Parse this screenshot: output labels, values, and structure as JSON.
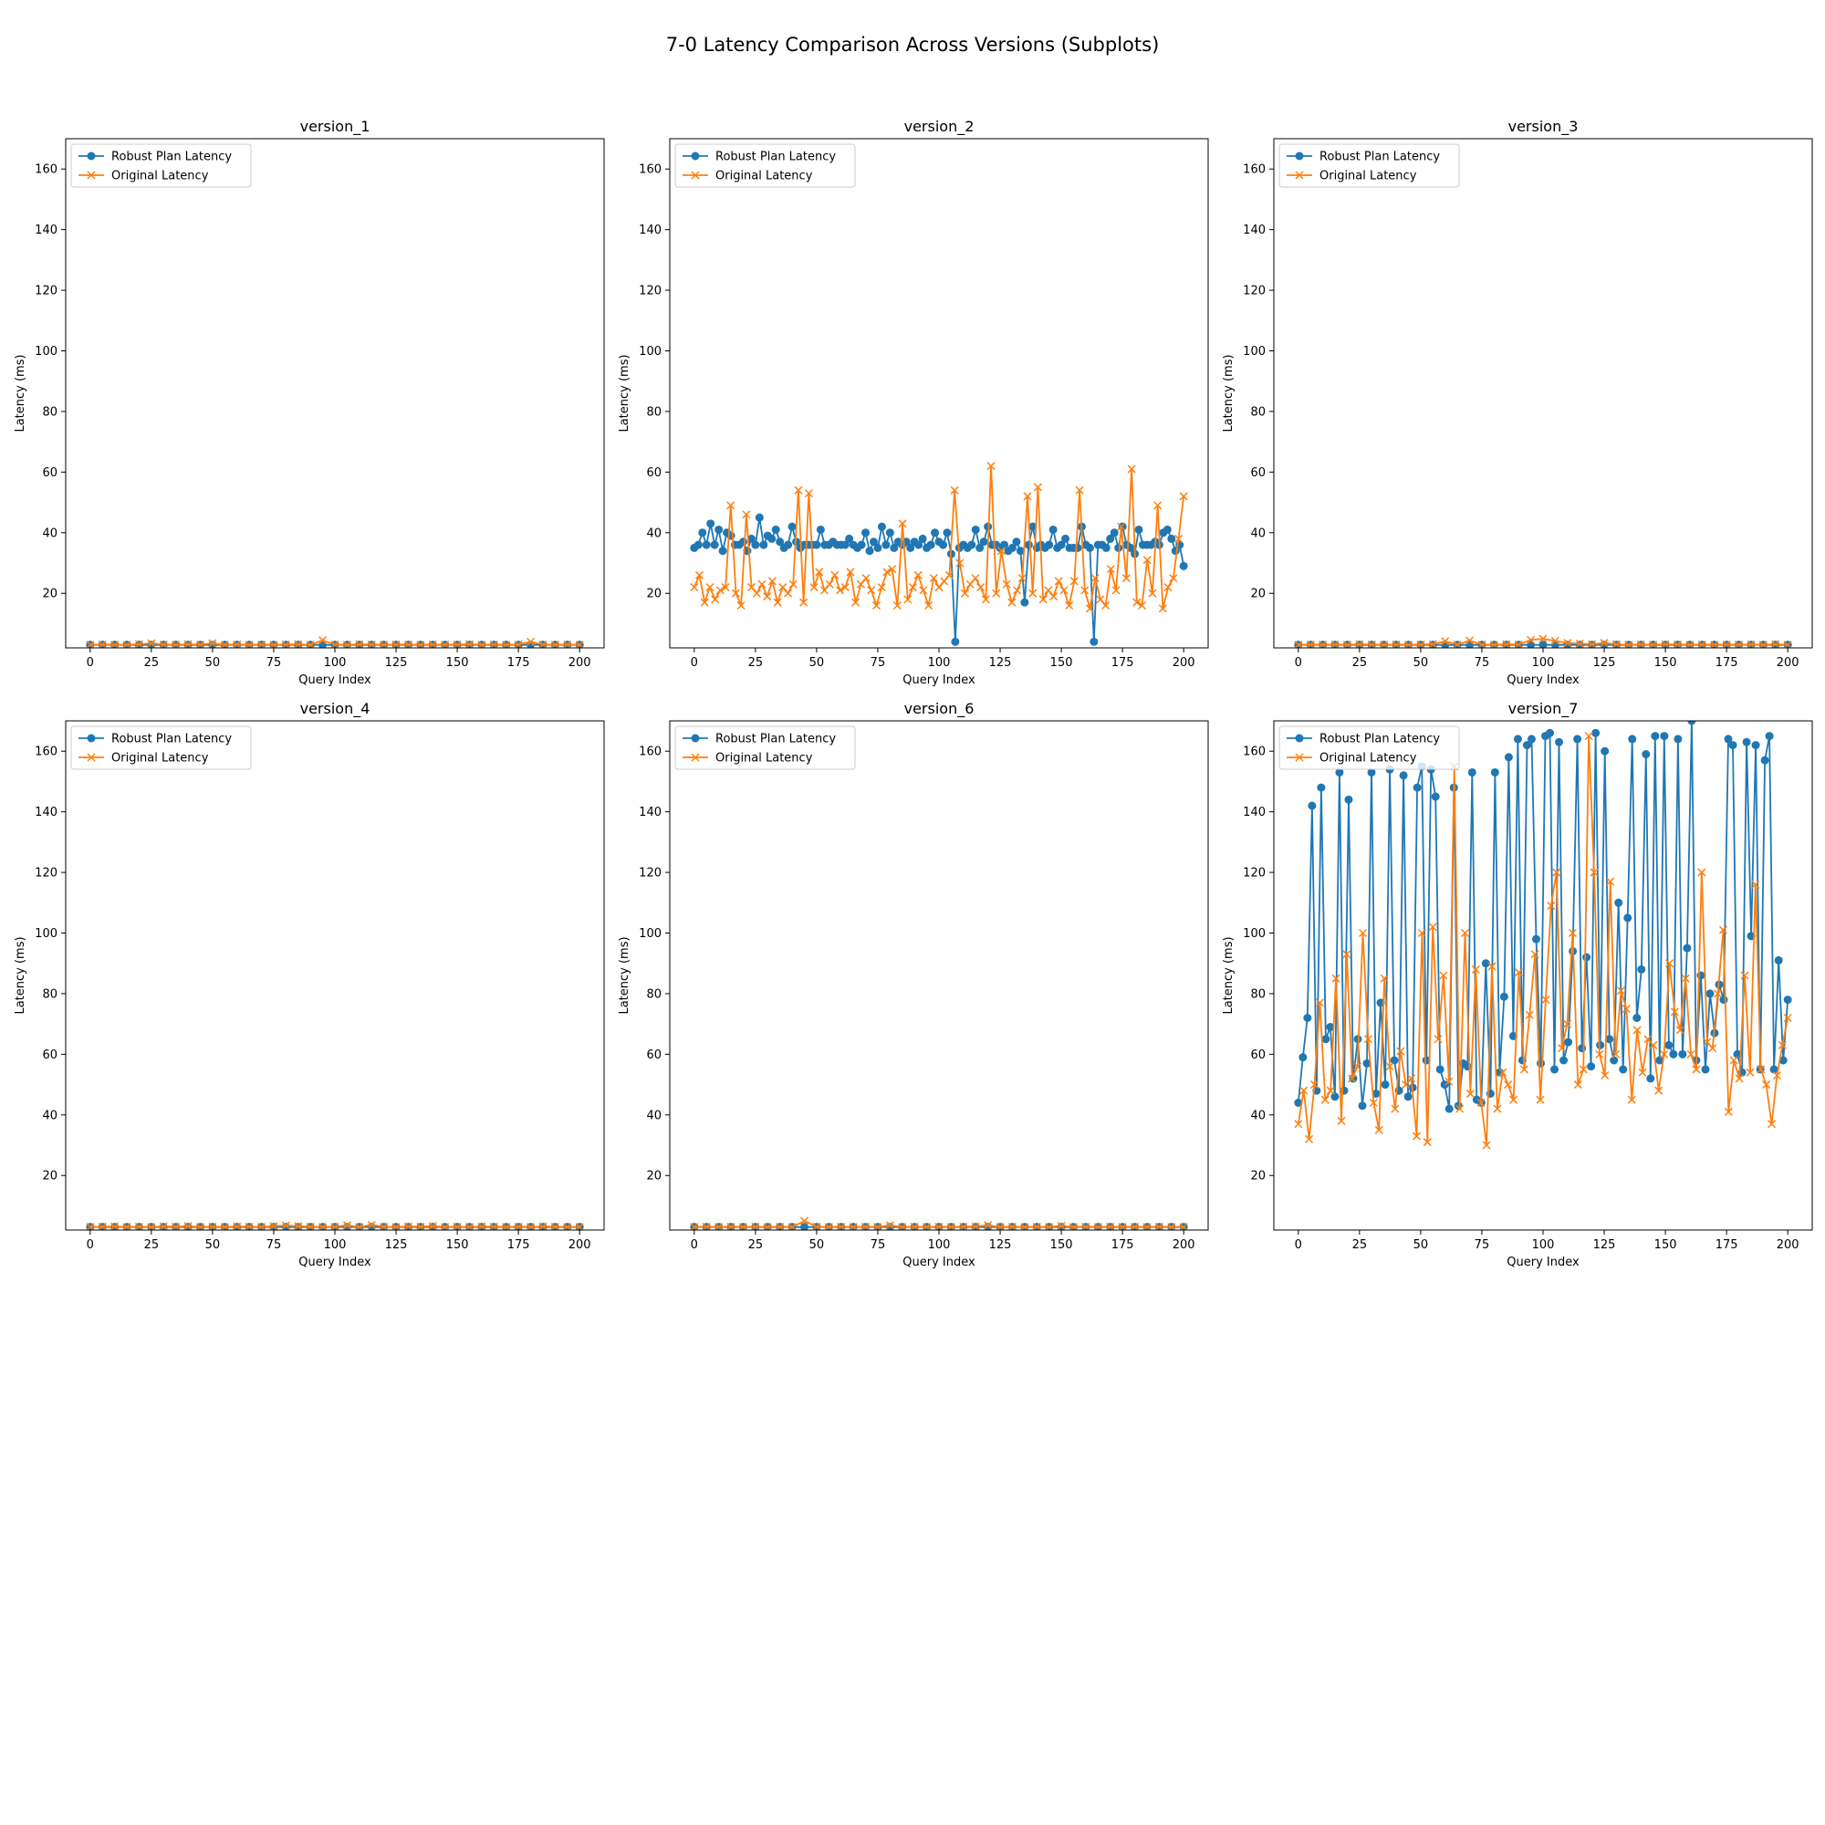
{
  "figure": {
    "title": "7-0 Latency Comparison Across Versions (Subplots)"
  },
  "chart_data": [
    {
      "type": "line",
      "title": "version_1",
      "xlabel": "Query Index",
      "ylabel": "Latency (ms)",
      "xlim": [
        -10,
        210
      ],
      "ylim": [
        2,
        170
      ],
      "xticks": [
        0,
        25,
        50,
        75,
        100,
        125,
        150,
        175,
        200
      ],
      "yticks": [
        20,
        40,
        60,
        80,
        100,
        120,
        140,
        160
      ],
      "legend": "upper-left",
      "series": [
        {
          "name": "Robust Plan Latency",
          "color": "#1f77b4",
          "marker": "circle",
          "values": [
            3.0,
            3.0,
            3.0,
            3.0,
            3.0,
            3.0,
            3.0,
            3.0,
            3.0,
            3.0,
            3.0,
            3.0,
            3.0,
            3.0,
            3.0,
            3.0,
            3.0,
            3.0,
            3.0,
            3.0,
            3.0,
            3.0,
            3.0,
            3.0,
            3.0,
            3.0,
            3.0,
            3.0,
            3.0,
            3.0,
            3.0,
            3.0,
            3.0,
            3.0,
            3.0,
            3.0,
            3.0,
            3.0,
            3.0,
            3.0,
            3.0
          ]
        },
        {
          "name": "Original Latency",
          "color": "#ff7f0e",
          "marker": "x",
          "values": [
            3.0,
            3.1,
            3.0,
            3.0,
            3.2,
            3.5,
            3.1,
            3.0,
            3.2,
            3.1,
            3.5,
            3.0,
            3.1,
            3.0,
            3.1,
            3.0,
            3.1,
            3.2,
            3.0,
            4.5,
            3.1,
            3.0,
            3.2,
            3.1,
            3.0,
            3.1,
            3.1,
            3.0,
            3.1,
            3.0,
            3.1,
            3.2,
            3.0,
            3.1,
            3.0,
            3.1,
            4.0,
            3.1,
            3.0,
            3.1,
            3.0
          ]
        }
      ]
    },
    {
      "type": "line",
      "title": "version_2",
      "xlabel": "Query Index",
      "ylabel": "Latency (ms)",
      "xlim": [
        -10,
        210
      ],
      "ylim": [
        2,
        170
      ],
      "xticks": [
        0,
        25,
        50,
        75,
        100,
        125,
        150,
        175,
        200
      ],
      "yticks": [
        20,
        40,
        60,
        80,
        100,
        120,
        140,
        160
      ],
      "legend": "upper-left",
      "series": [
        {
          "name": "Robust Plan Latency",
          "color": "#1f77b4",
          "marker": "circle",
          "values": [
            35,
            36,
            40,
            36,
            43,
            36,
            41,
            34,
            40,
            39,
            36,
            36,
            37,
            34,
            38,
            36,
            45,
            36,
            39,
            38,
            41,
            37,
            35,
            36,
            42,
            37,
            35,
            36,
            36,
            36,
            36,
            41,
            36,
            36,
            37,
            36,
            36,
            36,
            38,
            36,
            35,
            36,
            40,
            34,
            37,
            35,
            42,
            36,
            40,
            35,
            37,
            36,
            37,
            35,
            37,
            36,
            38,
            35,
            36,
            40,
            37,
            36,
            40,
            33,
            4,
            35,
            36,
            35,
            36,
            41,
            35,
            37,
            42,
            36,
            36,
            35,
            36,
            34,
            35,
            37,
            34,
            17,
            36,
            42,
            35,
            36,
            35,
            36,
            41,
            35,
            36,
            38,
            35,
            35,
            35,
            42,
            36,
            35,
            4,
            36,
            36,
            35,
            38,
            40,
            35,
            42,
            36,
            35,
            33,
            41,
            36,
            36,
            36,
            37,
            36,
            40,
            41,
            38,
            34,
            36,
            29
          ]
        },
        {
          "name": "Original Latency",
          "color": "#ff7f0e",
          "marker": "x",
          "values": [
            22,
            26,
            17,
            22,
            18,
            21,
            22,
            49,
            20,
            16,
            46,
            22,
            20,
            23,
            19,
            24,
            17,
            22,
            20,
            23,
            54,
            17,
            53,
            22,
            27,
            21,
            23,
            26,
            21,
            22,
            27,
            17,
            23,
            25,
            21,
            16,
            22,
            27,
            28,
            16,
            43,
            18,
            22,
            26,
            21,
            16,
            25,
            22,
            24,
            26,
            54,
            30,
            20,
            23,
            25,
            22,
            18,
            62,
            20,
            34,
            23,
            17,
            21,
            25,
            52,
            20,
            55,
            18,
            21,
            19,
            24,
            21,
            16,
            24,
            54,
            21,
            15,
            25,
            18,
            16,
            28,
            21,
            42,
            25,
            61,
            17,
            16,
            31,
            20,
            49,
            15,
            22,
            25,
            38,
            52
          ]
        }
      ]
    },
    {
      "type": "line",
      "title": "version_3",
      "xlabel": "Query Index",
      "ylabel": "Latency (ms)",
      "xlim": [
        -10,
        210
      ],
      "ylim": [
        2,
        170
      ],
      "xticks": [
        0,
        25,
        50,
        75,
        100,
        125,
        150,
        175,
        200
      ],
      "yticks": [
        20,
        40,
        60,
        80,
        100,
        120,
        140,
        160
      ],
      "legend": "upper-left",
      "series": [
        {
          "name": "Robust Plan Latency",
          "color": "#1f77b4",
          "marker": "circle",
          "values": [
            3.0,
            3.0,
            3.0,
            3.0,
            3.0,
            3.0,
            3.0,
            3.0,
            3.0,
            3.0,
            3.0,
            3.0,
            3.0,
            3.0,
            3.0,
            3.0,
            3.0,
            3.0,
            3.0,
            3.0,
            3.0,
            3.0,
            3.0,
            3.0,
            3.0,
            3.0,
            3.0,
            3.0,
            3.0,
            3.0,
            3.0,
            3.0,
            3.0,
            3.0,
            3.0,
            3.0,
            3.0,
            3.0,
            3.0,
            3.0,
            3.0
          ]
        },
        {
          "name": "Original Latency",
          "color": "#ff7f0e",
          "marker": "x",
          "values": [
            3.0,
            3.1,
            3.0,
            3.1,
            3.0,
            3.2,
            3.1,
            3.0,
            3.1,
            3.0,
            3.1,
            3.2,
            4.2,
            3.1,
            4.4,
            3.1,
            3.0,
            3.2,
            3.1,
            4.6,
            5.0,
            4.3,
            3.6,
            3.4,
            3.2,
            3.6,
            3.2,
            3.0,
            3.1,
            3.0,
            3.2,
            3.1,
            3.0,
            3.1,
            3.0,
            3.1,
            3.0,
            3.1,
            3.0,
            3.2,
            3.0
          ]
        }
      ]
    },
    {
      "type": "line",
      "title": "version_4",
      "xlabel": "Query Index",
      "ylabel": "Latency (ms)",
      "xlim": [
        -10,
        210
      ],
      "ylim": [
        2,
        170
      ],
      "xticks": [
        0,
        25,
        50,
        75,
        100,
        125,
        150,
        175,
        200
      ],
      "yticks": [
        20,
        40,
        60,
        80,
        100,
        120,
        140,
        160
      ],
      "legend": "upper-left",
      "series": [
        {
          "name": "Robust Plan Latency",
          "color": "#1f77b4",
          "marker": "circle",
          "values": [
            3.0,
            3.0,
            3.0,
            3.0,
            3.0,
            3.0,
            3.0,
            3.0,
            3.0,
            3.0,
            3.0,
            3.0,
            3.0,
            3.0,
            3.0,
            3.0,
            3.0,
            3.0,
            3.0,
            3.0,
            3.0,
            3.0,
            3.0,
            3.0,
            3.0,
            3.0,
            3.0,
            3.0,
            3.0,
            3.0,
            3.0,
            3.0,
            3.0,
            3.0,
            3.0,
            3.0,
            3.0,
            3.0,
            3.0,
            3.0,
            3.0
          ]
        },
        {
          "name": "Original Latency",
          "color": "#ff7f0e",
          "marker": "x",
          "values": [
            3.0,
            3.1,
            3.2,
            3.0,
            3.1,
            3.0,
            3.2,
            3.1,
            3.3,
            3.0,
            3.1,
            3.0,
            3.2,
            3.1,
            3.0,
            3.3,
            3.5,
            3.3,
            3.1,
            3.0,
            3.1,
            3.6,
            3.0,
            3.7,
            3.1,
            3.0,
            3.2,
            3.1,
            3.3,
            3.0,
            3.1,
            3.0,
            3.2,
            3.1,
            3.0,
            3.1,
            3.0,
            3.2,
            3.1,
            3.0,
            3.0
          ]
        }
      ]
    },
    {
      "type": "line",
      "title": "version_6",
      "xlabel": "Query Index",
      "ylabel": "Latency (ms)",
      "xlim": [
        -10,
        210
      ],
      "ylim": [
        2,
        170
      ],
      "xticks": [
        0,
        25,
        50,
        75,
        100,
        125,
        150,
        175,
        200
      ],
      "yticks": [
        20,
        40,
        60,
        80,
        100,
        120,
        140,
        160
      ],
      "legend": "upper-left",
      "series": [
        {
          "name": "Robust Plan Latency",
          "color": "#1f77b4",
          "marker": "circle",
          "values": [
            3.0,
            3.0,
            3.0,
            3.0,
            3.0,
            3.0,
            3.0,
            3.0,
            3.0,
            3.0,
            3.0,
            3.0,
            3.0,
            3.0,
            3.0,
            3.0,
            3.0,
            3.0,
            3.0,
            3.0,
            3.0,
            3.0,
            3.0,
            3.0,
            3.0,
            3.0,
            3.0,
            3.0,
            3.0,
            3.0,
            3.0,
            3.0,
            3.0,
            3.0,
            3.0,
            3.0,
            3.0,
            3.0,
            3.0,
            3.0,
            3.0
          ]
        },
        {
          "name": "Original Latency",
          "color": "#ff7f0e",
          "marker": "x",
          "values": [
            3.0,
            3.1,
            3.0,
            3.1,
            3.0,
            3.1,
            3.0,
            3.1,
            3.0,
            5.0,
            3.1,
            3.0,
            3.1,
            3.0,
            3.1,
            3.0,
            3.6,
            3.0,
            3.1,
            3.0,
            3.1,
            3.0,
            3.1,
            3.2,
            3.6,
            3.0,
            3.1,
            3.0,
            3.1,
            3.0,
            3.4,
            3.0,
            3.1,
            3.0,
            3.1,
            3.0,
            3.1,
            3.0,
            3.1,
            3.0,
            3.0
          ]
        }
      ]
    },
    {
      "type": "line",
      "title": "version_7",
      "xlabel": "Query Index",
      "ylabel": "Latency (ms)",
      "xlim": [
        -10,
        210
      ],
      "ylim": [
        2,
        170
      ],
      "xticks": [
        0,
        25,
        50,
        75,
        100,
        125,
        150,
        175,
        200
      ],
      "yticks": [
        20,
        40,
        60,
        80,
        100,
        120,
        140,
        160
      ],
      "legend": "upper-left",
      "series": [
        {
          "name": "Robust Plan Latency",
          "color": "#1f77b4",
          "marker": "circle",
          "values": [
            44,
            59,
            72,
            142,
            48,
            148,
            65,
            69,
            46,
            153,
            48,
            144,
            52,
            65,
            43,
            57,
            153,
            47,
            77,
            50,
            154,
            58,
            48,
            152,
            46,
            49,
            148,
            155,
            58,
            154,
            145,
            55,
            50,
            42,
            148,
            43,
            57,
            56,
            153,
            45,
            44,
            90,
            47,
            153,
            54,
            79,
            158,
            66,
            164,
            58,
            162,
            164,
            98,
            57,
            165,
            166,
            55,
            163,
            58,
            64,
            94,
            164,
            62,
            92,
            56,
            166,
            63,
            160,
            65,
            58,
            110,
            55,
            105,
            164,
            72,
            88,
            159,
            52,
            165,
            58,
            165,
            63,
            60,
            164,
            60,
            95,
            170,
            58,
            86,
            55,
            80,
            67,
            83,
            78,
            164,
            162,
            60,
            54,
            163,
            99,
            162,
            55,
            157,
            165,
            55,
            91,
            58,
            78
          ]
        },
        {
          "name": "Original Latency",
          "color": "#ff7f0e",
          "marker": "x",
          "values": [
            37,
            48,
            32,
            50,
            77,
            45,
            48,
            85,
            38,
            93,
            52,
            56,
            100,
            65,
            44,
            35,
            85,
            56,
            42,
            61,
            50,
            52,
            33,
            100,
            31,
            102,
            65,
            86,
            51,
            155,
            42,
            100,
            47,
            88,
            44,
            30,
            89,
            42,
            54,
            50,
            45,
            87,
            55,
            73,
            93,
            45,
            78,
            109,
            120,
            62,
            70,
            100,
            50,
            55,
            165,
            120,
            60,
            53,
            117,
            60,
            81,
            75,
            45,
            68,
            54,
            65,
            63,
            48,
            60,
            90,
            74,
            68,
            85,
            60,
            55,
            120,
            64,
            62,
            80,
            101,
            41,
            58,
            52,
            86,
            54,
            116,
            55,
            50,
            37,
            53,
            63,
            72
          ]
        }
      ]
    }
  ]
}
